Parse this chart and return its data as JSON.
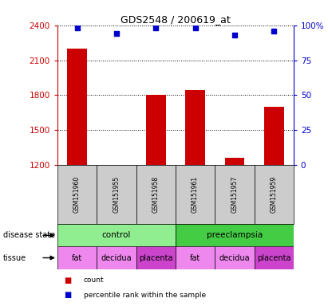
{
  "title": "GDS2548 / 200619_at",
  "samples": [
    "GSM151960",
    "GSM151955",
    "GSM151958",
    "GSM151961",
    "GSM151957",
    "GSM151959"
  ],
  "counts": [
    2200,
    1195,
    1805,
    1840,
    1260,
    1700
  ],
  "percentiles": [
    98,
    94,
    98,
    98,
    93,
    96
  ],
  "ylim_left": [
    1200,
    2400
  ],
  "ylim_right": [
    0,
    100
  ],
  "yticks_left": [
    1200,
    1500,
    1800,
    2100,
    2400
  ],
  "yticks_right": [
    0,
    25,
    50,
    75,
    100
  ],
  "bar_color": "#cc0000",
  "dot_color": "#0000cc",
  "tissue_labels": [
    "fat",
    "decidua",
    "placenta",
    "fat",
    "decidua",
    "placenta"
  ],
  "tissue_fat_color": "#ee88ee",
  "tissue_decidua_color": "#ee88ee",
  "tissue_placenta_color": "#cc44cc",
  "sample_box_color": "#cccccc",
  "control_color": "#90ee90",
  "preeclampsia_color": "#44cc44",
  "left_axis_color": "#cc0000",
  "right_axis_color": "#0000cc",
  "fig_width": 4.11,
  "fig_height": 3.84,
  "dpi": 100
}
